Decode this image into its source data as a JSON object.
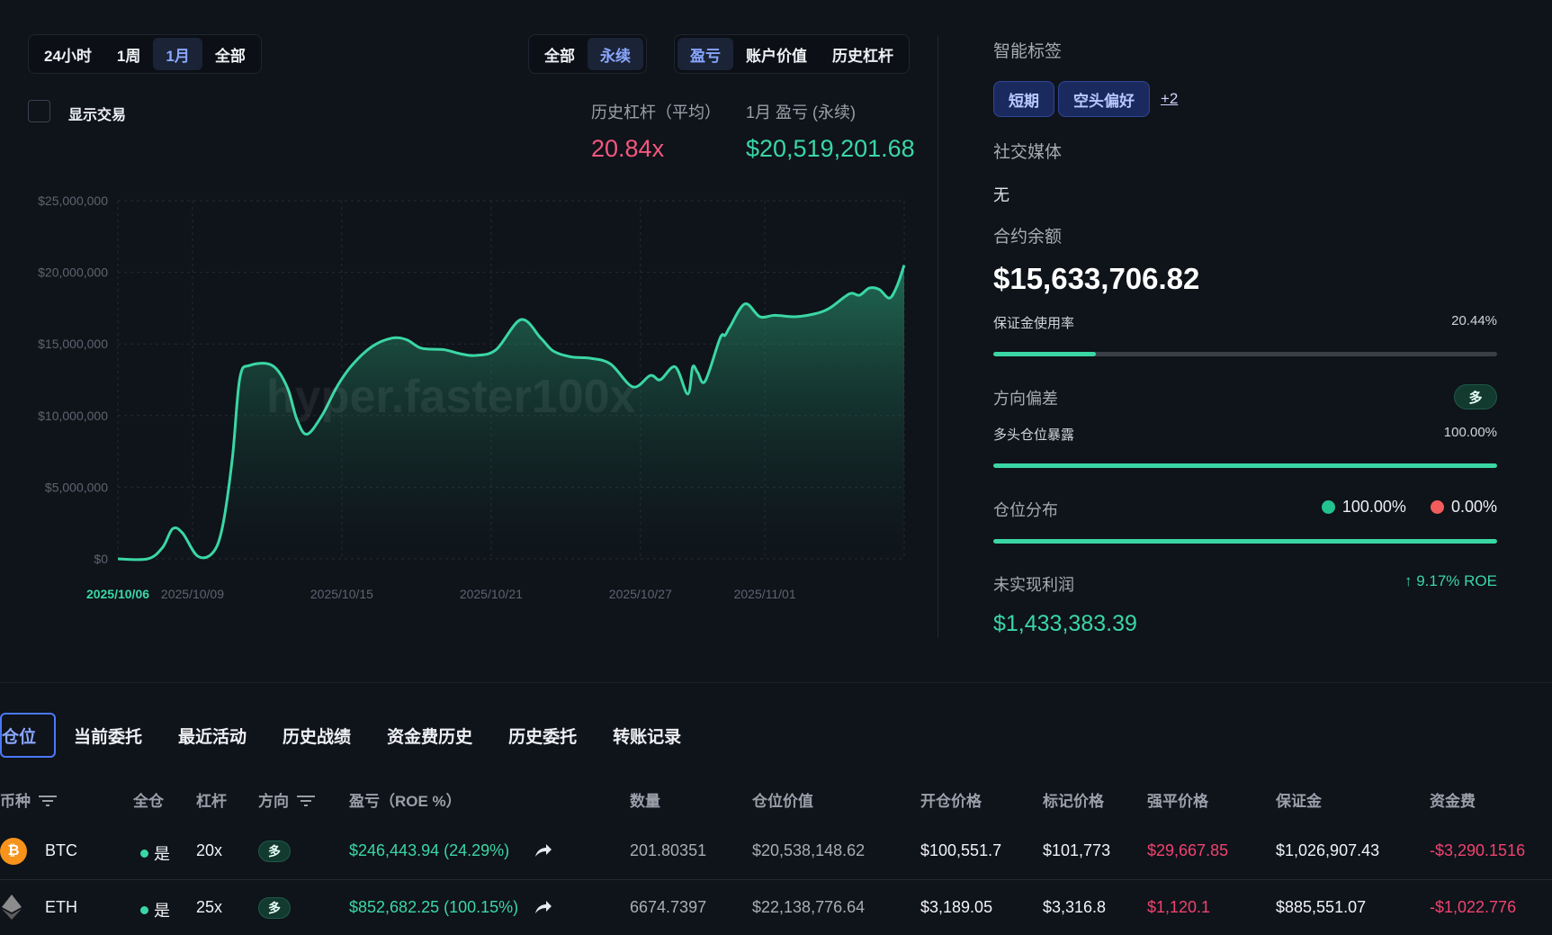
{
  "range_tabs": [
    "24小时",
    "1周",
    "1月",
    "全部"
  ],
  "range_active": "1月",
  "market_tabs": [
    "全部",
    "永续"
  ],
  "market_active": "永续",
  "metric_tabs": [
    "盈亏",
    "账户价值",
    "历史杠杆"
  ],
  "metric_active": "盈亏",
  "show_trades_label": "显示交易",
  "stats": {
    "leverage_label": "历史杠杆（平均）",
    "leverage_value": "20.84x",
    "pnl_label": "1月 盈亏 (永续)",
    "pnl_value": "$20,519,201.68"
  },
  "watermark": "hyper.faster100x",
  "chart_data": {
    "type": "area",
    "ylim": [
      0,
      25000000
    ],
    "y_ticks": [
      "$0",
      "$5,000,000",
      "$10,000,000",
      "$15,000,000",
      "$20,000,000",
      "$25,000,000"
    ],
    "x_ticks": [
      "2025/10/06",
      "2025/10/09",
      "2025/10/15",
      "2025/10/21",
      "2025/10/27",
      "2025/11/01"
    ],
    "x_tick_days": [
      0,
      3,
      9,
      15,
      21,
      26
    ],
    "x_range_days": [
      0,
      31.6
    ],
    "highlight_tick": "2025/10/06",
    "grid": true,
    "series": [
      {
        "days": [
          0,
          1.2,
          1.8,
          2.2,
          2.6,
          3.2,
          3.8,
          4.2,
          4.6,
          4.9,
          5.3,
          6.2,
          6.8,
          7.2,
          7.6,
          8.2,
          8.8,
          9.4,
          10.2,
          11,
          11.6,
          12.2,
          13.1,
          13.8,
          14.4,
          15.2,
          16.2,
          17,
          17.5,
          18.2,
          19,
          19.8,
          20.7,
          21.4,
          21.8,
          22.4,
          22.9,
          23.1,
          23.3,
          23.6,
          24.2,
          24.4,
          24.6,
          25.2,
          25.8,
          26.4,
          27.2,
          28,
          28.6,
          29.4,
          29.8,
          30.2,
          30.6,
          31,
          31.3,
          31.6
        ],
        "values": [
          0,
          0,
          800000,
          2100000,
          1800000,
          200000,
          400000,
          2200000,
          7000000,
          12600000,
          13500000,
          13500000,
          12000000,
          9700000,
          8700000,
          10000000,
          12000000,
          13500000,
          14800000,
          15400000,
          15300000,
          14700000,
          14600000,
          14300000,
          14200000,
          14600000,
          16700000,
          15400000,
          14500000,
          14100000,
          14000000,
          13600000,
          12000000,
          12800000,
          12500000,
          13400000,
          11500000,
          13400000,
          13000000,
          12400000,
          15400000,
          15600000,
          16200000,
          17800000,
          16900000,
          17000000,
          16900000,
          17100000,
          17500000,
          18500000,
          18400000,
          18900000,
          18800000,
          18200000,
          19000000,
          20500000
        ]
      }
    ]
  },
  "right": {
    "smart_tags_title": "智能标签",
    "tags": [
      "短期",
      "空头偏好"
    ],
    "tags_more": "+2",
    "social_title": "社交媒体",
    "social_value": "无",
    "balance_title": "合约余额",
    "balance_value": "$15,633,706.82",
    "margin_label": "保证金使用率",
    "margin_value": "20.44%",
    "margin_fraction": 0.2044,
    "direction_title": "方向偏差",
    "direction_pill": "多",
    "long_exposure_label": "多头仓位暴露",
    "long_exposure_value": "100.00%",
    "long_exposure_fraction": 1.0,
    "distribution_title": "仓位分布",
    "dist_long_value": "100.00%",
    "dist_short_value": "0.00%",
    "dist_long_fraction": 1.0,
    "dist_long_color": "#22c38e",
    "dist_short_color": "#f25c5c",
    "unrealized_title": "未实现利润",
    "roe_value": "↑ 9.17% ROE",
    "unrealized_value": "$1,433,383.39"
  },
  "bottom_tabs": [
    "仓位",
    "当前委托",
    "最近活动",
    "历史战绩",
    "资金费历史",
    "历史委托",
    "转账记录"
  ],
  "bottom_active": "仓位",
  "table": {
    "headers": [
      "币种",
      "全仓",
      "杠杆",
      "方向",
      "盈亏（ROE %）",
      "数量",
      "仓位价值",
      "开仓价格",
      "标记价格",
      "强平价格",
      "保证金",
      "资金费"
    ],
    "rows": [
      {
        "coin": "BTC",
        "icon": "bitcoin-icon",
        "cross": "是",
        "leverage": "20x",
        "side": "多",
        "pnl": "$246,443.94 (24.29%)",
        "qty": "201.80351",
        "value": "$20,538,148.62",
        "entry": "$100,551.7",
        "mark": "$101,773",
        "liq": "$29,667.85",
        "margin": "$1,026,907.43",
        "funding": "-$3,290.1516"
      },
      {
        "coin": "ETH",
        "icon": "ethereum-icon",
        "cross": "是",
        "leverage": "25x",
        "side": "多",
        "pnl": "$852,682.25 (100.15%)",
        "qty": "6674.7397",
        "value": "$22,138,776.64",
        "entry": "$3,189.05",
        "mark": "$3,316.8",
        "liq": "$1,120.1",
        "margin": "$885,551.07",
        "funding": "-$1,022.776"
      }
    ]
  }
}
